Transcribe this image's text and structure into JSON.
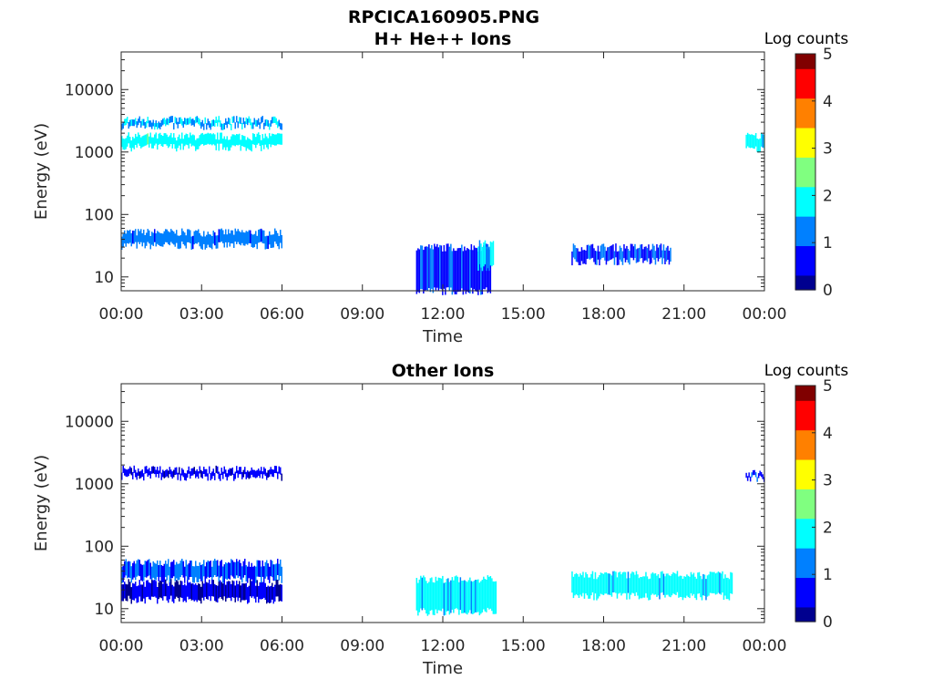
{
  "figure_title": "RPCICA160905.PNG",
  "colors": {
    "jet": [
      "#00008f",
      "#0000ff",
      "#0080ff",
      "#00ffff",
      "#80ff80",
      "#ffff00",
      "#ff8000",
      "#ff0000",
      "#800000"
    ],
    "axis": "#262626",
    "background": "#ffffff"
  },
  "chart_data": [
    {
      "type": "heatmap",
      "title": "H+ He++ Ions",
      "xlabel": "Time",
      "ylabel": "Energy (eV)",
      "x_ticks": [
        "00:00",
        "03:00",
        "06:00",
        "09:00",
        "12:00",
        "15:00",
        "18:00",
        "21:00",
        "00:00"
      ],
      "x_range_hours": [
        0,
        24
      ],
      "y_scale": "log",
      "y_range": [
        6,
        40000
      ],
      "y_ticks": [
        10,
        100,
        1000,
        10000
      ],
      "y_tick_labels": [
        "10",
        "100",
        "1000",
        "10000"
      ],
      "colorbar": {
        "label": "Log counts",
        "range": [
          0,
          5
        ],
        "ticks": [
          "0",
          "1",
          "2",
          "3",
          "4",
          "5"
        ]
      },
      "features": [
        {
          "t0": 0.0,
          "t1": 6.0,
          "e0": 32,
          "e1": 52,
          "level": 1.2,
          "desc": "low-energy band"
        },
        {
          "t0": 0.0,
          "t1": 6.0,
          "e0": 1200,
          "e1": 1800,
          "level": 1.9,
          "desc": "high-energy band"
        },
        {
          "t0": 0.0,
          "t1": 6.0,
          "e0": 2600,
          "e1": 3300,
          "level": 1.5,
          "desc": "upper high-energy band"
        },
        {
          "t0": 11.0,
          "t1": 13.8,
          "e0": 6,
          "e1": 30,
          "level": 0.8,
          "desc": "rising low-energy feature"
        },
        {
          "t0": 13.3,
          "t1": 13.9,
          "e0": 14,
          "e1": 34,
          "level": 1.6,
          "desc": "bright patch"
        },
        {
          "t0": 16.8,
          "t1": 20.5,
          "e0": 18,
          "e1": 30,
          "level": 0.9,
          "desc": "evening band"
        },
        {
          "t0": 23.3,
          "t1": 24.0,
          "e0": 1100,
          "e1": 1800,
          "level": 1.8,
          "desc": "late high-energy patch"
        }
      ]
    },
    {
      "type": "heatmap",
      "title": "Other Ions",
      "xlabel": "Time",
      "ylabel": "Energy (eV)",
      "x_ticks": [
        "00:00",
        "03:00",
        "06:00",
        "09:00",
        "12:00",
        "15:00",
        "18:00",
        "21:00",
        "00:00"
      ],
      "x_range_hours": [
        0,
        24
      ],
      "y_scale": "log",
      "y_range": [
        6,
        40000
      ],
      "y_ticks": [
        10,
        100,
        1000,
        10000
      ],
      "y_tick_labels": [
        "10",
        "100",
        "1000",
        "10000"
      ],
      "colorbar": {
        "label": "Log counts",
        "range": [
          0,
          5
        ],
        "ticks": [
          "0",
          "1",
          "2",
          "3",
          "4",
          "5"
        ]
      },
      "features": [
        {
          "t0": 0.0,
          "t1": 6.0,
          "e0": 30,
          "e1": 55,
          "level": 1.0,
          "desc": "low-energy band"
        },
        {
          "t0": 0.0,
          "t1": 6.0,
          "e0": 14,
          "e1": 26,
          "level": 0.4,
          "desc": "lower faint band"
        },
        {
          "t0": 0.0,
          "t1": 6.0,
          "e0": 1300,
          "e1": 1700,
          "level": 0.5,
          "desc": "faint high-energy band"
        },
        {
          "t0": 11.0,
          "t1": 14.0,
          "e0": 9,
          "e1": 30,
          "level": 1.8,
          "desc": "afternoon feature"
        },
        {
          "t0": 16.8,
          "t1": 22.8,
          "e0": 16,
          "e1": 35,
          "level": 1.8,
          "desc": "evening band"
        },
        {
          "t0": 23.3,
          "t1": 24.0,
          "e0": 1250,
          "e1": 1500,
          "level": 0.8,
          "desc": "late high-energy patch"
        }
      ]
    }
  ]
}
